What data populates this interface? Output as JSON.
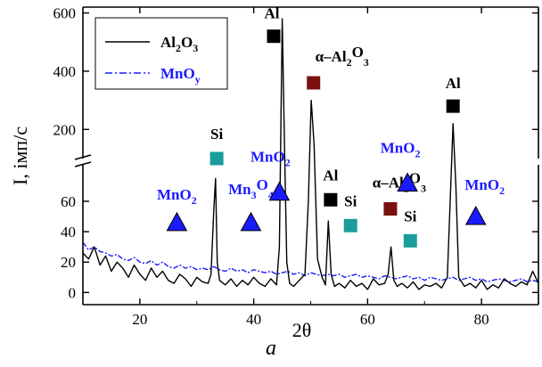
{
  "caption": "a",
  "chart_data": {
    "type": "line",
    "xlabel": "2θ",
    "ylabel": "I, імп/с",
    "xlim": [
      10,
      90
    ],
    "x_ticks": [
      20,
      40,
      60,
      80
    ],
    "y_lower": {
      "range": [
        -8,
        84
      ],
      "ticks": [
        0,
        20,
        40,
        60
      ]
    },
    "y_upper": {
      "range": [
        100,
        620
      ],
      "ticks": [
        200,
        400,
        600
      ]
    },
    "axis_break": true,
    "legend_placement": "top-left",
    "series": [
      {
        "name": "Al2O3",
        "legend_main": "Al",
        "legend_sub1": "2",
        "legend_mid": "O",
        "legend_sub2": "3",
        "color": "#000000",
        "style": "solid",
        "x": [
          10,
          11,
          12,
          13,
          14,
          15,
          16,
          17,
          18,
          19,
          20,
          21,
          22,
          23,
          24,
          25,
          26,
          27,
          28,
          29,
          30,
          31,
          32,
          32.5,
          33,
          33.3,
          33.6,
          34,
          35,
          36,
          37,
          38,
          39,
          40,
          41,
          42,
          43,
          44,
          44.5,
          45,
          45.4,
          45.8,
          46.3,
          47,
          48,
          49,
          49.6,
          50.1,
          50.6,
          51.2,
          52,
          52.6,
          53.1,
          53.6,
          54.2,
          55,
          56,
          57,
          58,
          59,
          60,
          61,
          62,
          63,
          63.6,
          64.1,
          64.6,
          65.2,
          66,
          67,
          68,
          69,
          70,
          71,
          72,
          73,
          74,
          74.5,
          75,
          75.5,
          76,
          77,
          78,
          79,
          80,
          81,
          82,
          83,
          84,
          85,
          86,
          87,
          88,
          89,
          90
        ],
        "y": [
          26,
          22,
          30,
          18,
          24,
          14,
          20,
          16,
          10,
          18,
          12,
          8,
          16,
          10,
          14,
          8,
          6,
          12,
          9,
          4,
          10,
          7,
          6,
          12,
          55,
          75,
          20,
          8,
          5,
          9,
          4,
          8,
          5,
          10,
          6,
          4,
          9,
          5,
          30,
          580,
          150,
          20,
          6,
          4,
          8,
          12,
          60,
          300,
          150,
          22,
          10,
          5,
          47,
          12,
          4,
          6,
          3,
          8,
          4,
          6,
          2,
          9,
          5,
          6,
          12,
          30,
          8,
          4,
          6,
          3,
          7,
          2,
          5,
          4,
          6,
          3,
          10,
          60,
          220,
          70,
          10,
          4,
          6,
          3,
          8,
          2,
          5,
          3,
          9,
          6,
          4,
          7,
          5,
          14,
          6
        ]
      },
      {
        "name": "MnOy",
        "legend_main": "MnO",
        "legend_sub1": "y",
        "legend_mid": "",
        "legend_sub2": "",
        "color": "#1a1aff",
        "style": "dash-dot",
        "x": [
          10,
          11,
          12,
          13,
          14,
          15,
          16,
          17,
          18,
          19,
          20,
          21,
          22,
          23,
          24,
          25,
          26,
          27,
          28,
          29,
          30,
          31,
          32,
          33,
          34,
          35,
          36,
          37,
          38,
          39,
          40,
          41,
          42,
          43,
          44,
          45,
          46,
          47,
          48,
          49,
          50,
          51,
          52,
          53,
          54,
          55,
          56,
          57,
          58,
          59,
          60,
          61,
          62,
          63,
          64,
          65,
          66,
          67,
          68,
          69,
          70,
          71,
          72,
          73,
          74,
          75,
          76,
          77,
          78,
          79,
          80,
          81,
          82,
          83,
          84,
          85,
          86,
          87,
          88,
          89,
          90
        ],
        "y": [
          33,
          28,
          30,
          27,
          26,
          24,
          25,
          22,
          21,
          23,
          20,
          19,
          21,
          18,
          20,
          17,
          16,
          18,
          16,
          17,
          15,
          16,
          15,
          17,
          15,
          14,
          16,
          14,
          15,
          13,
          15,
          14,
          13,
          14,
          12,
          13,
          14,
          12,
          13,
          11,
          13,
          12,
          11,
          12,
          11,
          12,
          10,
          11,
          12,
          10,
          11,
          10,
          9,
          11,
          10,
          9,
          10,
          11,
          9,
          10,
          8,
          10,
          9,
          8,
          9,
          10,
          8,
          9,
          10,
          8,
          9,
          7,
          8,
          9,
          8,
          7,
          8,
          9,
          7,
          8,
          7
        ]
      }
    ],
    "annotations": [
      {
        "marker": "triangle",
        "color": "#1a1aff",
        "x": 26.5,
        "y": 46,
        "label_main": "MnO",
        "label_sub": "2",
        "label_dx": 0,
        "label_dy": -26
      },
      {
        "marker": "square",
        "color": "#1a9c9c",
        "x": 33.5,
        "y": 100,
        "label_main": "Si",
        "label_sub": "",
        "label_dx": 0,
        "label_dy": -22
      },
      {
        "marker": "triangle",
        "color": "#1a1aff",
        "x": 39.5,
        "y": 46,
        "label_main": "Mn",
        "label_sub": "3",
        "label_mid": "O",
        "label_sub2": "4",
        "label_dx": 0,
        "label_dy": -32
      },
      {
        "marker": "triangle",
        "color": "#1a1aff",
        "x": 44.5,
        "y": 66,
        "label_main": "MnO",
        "label_sub": "2",
        "label_dx": -10,
        "label_dy": -34
      },
      {
        "marker": "square",
        "color": "#000000",
        "x": 43.5,
        "y": 520,
        "label_main": "Al",
        "label_sub": "",
        "label_dx": -2,
        "label_dy": -20
      },
      {
        "marker": "square",
        "color": "#7a1010",
        "x": 50.5,
        "y": 360,
        "label_main": "α–Al",
        "label_sub": "2",
        "label_mid": "O",
        "label_sub2": "3",
        "label_dx": 32,
        "label_dy": -24
      },
      {
        "marker": "square",
        "color": "#000000",
        "x": 53.5,
        "y": 61,
        "label_main": "Al",
        "label_sub": "",
        "label_dx": 0,
        "label_dy": -22
      },
      {
        "marker": "square",
        "color": "#1a9c9c",
        "x": 57,
        "y": 44,
        "label_main": "Si",
        "label_sub": "",
        "label_dx": 0,
        "label_dy": -22
      },
      {
        "marker": "square",
        "color": "#7a1010",
        "x": 64,
        "y": 55,
        "label_main": "α–Al",
        "label_sub": "2",
        "label_mid": "O",
        "label_sub2": "3",
        "label_dx": 10,
        "label_dy": -24
      },
      {
        "marker": "square",
        "color": "#1a9c9c",
        "x": 67.5,
        "y": 34,
        "label_main": "Si",
        "label_sub": "",
        "label_dx": 0,
        "label_dy": -22
      },
      {
        "marker": "triangle",
        "color": "#1a1aff",
        "x": 67,
        "y": 72,
        "label_main": "MnO",
        "label_sub": "2",
        "label_dx": -8,
        "label_dy": -34
      },
      {
        "marker": "square",
        "color": "#000000",
        "x": 75,
        "y": 280,
        "label_main": "Al",
        "label_sub": "",
        "label_dx": 0,
        "label_dy": -20
      },
      {
        "marker": "triangle",
        "color": "#1a1aff",
        "x": 79,
        "y": 50,
        "label_main": "MnO",
        "label_sub": "2",
        "label_dx": 10,
        "label_dy": -30
      }
    ]
  }
}
